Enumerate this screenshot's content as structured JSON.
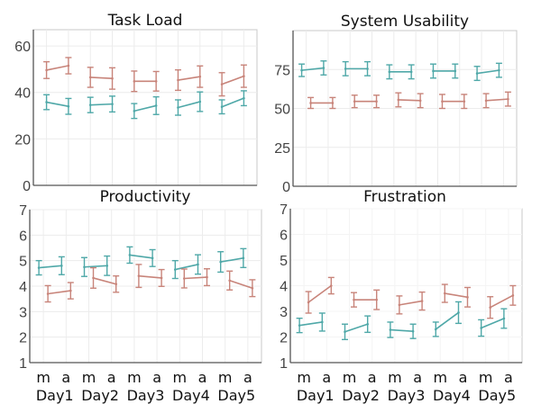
{
  "colors": {
    "series_a": "#4fa8a8",
    "series_b": "#c8847a"
  },
  "chart_data": [
    {
      "type": "line",
      "title": "Task Load",
      "xlabel": "",
      "ylabel": "",
      "categories": [
        "m",
        "a",
        "m",
        "a",
        "m",
        "a",
        "m",
        "a",
        "m",
        "a"
      ],
      "groups": [
        "Day1",
        "Day2",
        "Day3",
        "Day4",
        "Day5"
      ],
      "ylim": [
        0,
        67
      ],
      "yticks": [
        0,
        20,
        40,
        60
      ],
      "grid": true,
      "show_xlabels": false,
      "series": [
        {
          "name": "teal",
          "color": "#4fa8a8",
          "values": [
            35.8,
            34.0,
            34.6,
            35.0,
            32.0,
            34.3,
            33.5,
            36.0,
            33.8,
            37.5
          ],
          "errors": [
            3.2,
            3.4,
            3.3,
            3.4,
            3.2,
            3.8,
            3.3,
            4.2,
            3.0,
            3.2
          ]
        },
        {
          "name": "red",
          "color": "#c8847a",
          "values": [
            49.6,
            51.5,
            46.5,
            46.0,
            44.8,
            44.8,
            45.3,
            46.8,
            43.5,
            47.0
          ],
          "errors": [
            3.6,
            3.5,
            4.3,
            4.6,
            4.4,
            4.2,
            4.4,
            4.6,
            5.0,
            4.8
          ]
        }
      ]
    },
    {
      "type": "line",
      "title": "System Usability",
      "xlabel": "",
      "ylabel": "",
      "categories": [
        "m",
        "a",
        "m",
        "a",
        "m",
        "a",
        "m",
        "a",
        "m",
        "a"
      ],
      "groups": [
        "Day1",
        "Day2",
        "Day3",
        "Day4",
        "Day5"
      ],
      "ylim": [
        0,
        100
      ],
      "yticks": [
        0,
        25,
        50,
        75
      ],
      "grid": true,
      "show_xlabels": false,
      "series": [
        {
          "name": "teal",
          "color": "#4fa8a8",
          "values": [
            74.5,
            76.0,
            75.5,
            75.5,
            73.5,
            73.5,
            74.0,
            74.0,
            72.5,
            74.5
          ],
          "errors": [
            4.0,
            4.5,
            4.5,
            4.5,
            4.5,
            4.5,
            4.5,
            4.5,
            4.5,
            4.5
          ]
        },
        {
          "name": "red",
          "color": "#c8847a",
          "values": [
            53.5,
            53.5,
            54.5,
            54.5,
            55.5,
            55.0,
            54.5,
            54.5,
            55.0,
            56.0
          ],
          "errors": [
            3.5,
            3.5,
            4.0,
            4.0,
            4.5,
            4.5,
            4.5,
            4.5,
            4.5,
            4.5
          ]
        }
      ]
    },
    {
      "type": "line",
      "title": "Productivity",
      "xlabel": "",
      "ylabel": "",
      "categories": [
        "m",
        "a",
        "m",
        "a",
        "m",
        "a",
        "m",
        "a",
        "m",
        "a"
      ],
      "groups": [
        "Day1",
        "Day2",
        "Day3",
        "Day4",
        "Day5"
      ],
      "ylim": [
        1,
        7
      ],
      "yticks": [
        1,
        2,
        3,
        4,
        5,
        6,
        7
      ],
      "grid": true,
      "show_xlabels": true,
      "series": [
        {
          "name": "teal",
          "color": "#4fa8a8",
          "values": [
            4.72,
            4.8,
            4.75,
            4.8,
            5.22,
            5.1,
            4.65,
            4.85,
            4.95,
            5.1
          ],
          "errors": [
            0.28,
            0.35,
            0.37,
            0.38,
            0.32,
            0.33,
            0.35,
            0.38,
            0.4,
            0.37
          ]
        },
        {
          "name": "red",
          "color": "#c8847a",
          "values": [
            3.7,
            3.82,
            4.32,
            4.08,
            4.4,
            4.32,
            4.3,
            4.35,
            4.22,
            3.92
          ],
          "errors": [
            0.32,
            0.32,
            0.4,
            0.32,
            0.45,
            0.33,
            0.37,
            0.33,
            0.37,
            0.33
          ]
        }
      ]
    },
    {
      "type": "line",
      "title": "Frustration",
      "xlabel": "",
      "ylabel": "",
      "categories": [
        "m",
        "a",
        "m",
        "a",
        "m",
        "a",
        "m",
        "a",
        "m",
        "a"
      ],
      "groups": [
        "Day1",
        "Day2",
        "Day3",
        "Day4",
        "Day5"
      ],
      "ylim": [
        1,
        7
      ],
      "yticks": [
        1,
        2,
        3,
        4,
        5,
        6,
        7
      ],
      "grid": false,
      "show_xlabels": true,
      "series": [
        {
          "name": "teal",
          "color": "#4fa8a8",
          "values": [
            2.45,
            2.58,
            2.2,
            2.5,
            2.28,
            2.22,
            2.3,
            2.95,
            2.35,
            2.72
          ],
          "errors": [
            0.28,
            0.35,
            0.3,
            0.32,
            0.3,
            0.28,
            0.28,
            0.42,
            0.32,
            0.38
          ]
        },
        {
          "name": "red",
          "color": "#c8847a",
          "values": [
            3.35,
            4.0,
            3.45,
            3.45,
            3.25,
            3.4,
            3.7,
            3.55,
            3.15,
            3.62
          ],
          "errors": [
            0.42,
            0.32,
            0.28,
            0.38,
            0.35,
            0.35,
            0.35,
            0.38,
            0.42,
            0.38
          ]
        }
      ]
    }
  ]
}
